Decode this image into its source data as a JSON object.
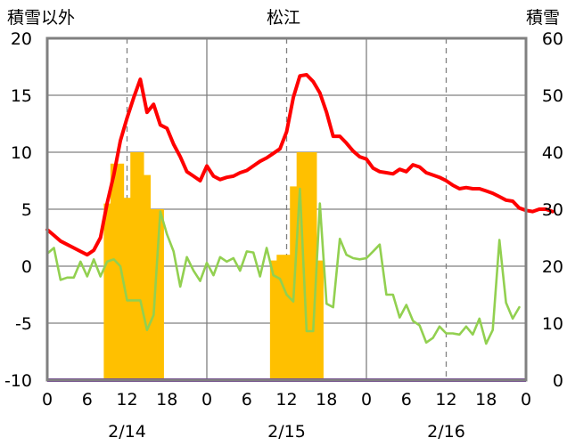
{
  "chart_data": {
    "type": "bar+line",
    "title": "松江",
    "y_left_label": "積雪以外",
    "y_right_label": "積雪",
    "y_left_range": [
      -10,
      20
    ],
    "y_left_ticks": [
      "20",
      "15",
      "10",
      "5",
      "0",
      "-5",
      "-10"
    ],
    "y_right_range": [
      0,
      60
    ],
    "y_right_ticks": [
      "60",
      "50",
      "40",
      "30",
      "20",
      "10",
      "0"
    ],
    "x_range": [
      0,
      72
    ],
    "x_tick_labels": [
      "0",
      "6",
      "12",
      "18",
      "0",
      "6",
      "12",
      "18",
      "0",
      "6",
      "12",
      "18",
      "0"
    ],
    "date_labels": [
      "2/14",
      "2/15",
      "2/16"
    ],
    "grid": {
      "major_vertical_hours": [
        24,
        48
      ],
      "dashed_vertical_hours": [
        12,
        36,
        60
      ],
      "horizontal": true
    },
    "colors": {
      "red": "#ff0000",
      "green": "#92d050",
      "bars": "#ffc000",
      "purple": "#7030a0",
      "grid": "#808080"
    },
    "series": [
      {
        "axis": "left",
        "kind": "line",
        "color": "#ff0000",
        "values": [
          3.2,
          2.7,
          2.2,
          1.9,
          1.6,
          1.3,
          1.0,
          1.4,
          2.5,
          5.5,
          8.0,
          11.0,
          13.0,
          14.8,
          16.4,
          13.5,
          14.2,
          12.4,
          12.1,
          10.7,
          9.6,
          8.3,
          7.9,
          7.5,
          8.8,
          7.9,
          7.6,
          7.8,
          7.9,
          8.2,
          8.4,
          8.8,
          9.2,
          9.5,
          9.9,
          10.3,
          11.8,
          14.8,
          16.7,
          16.8,
          16.2,
          15.2,
          13.5,
          11.4,
          11.4,
          10.8,
          10.1,
          9.6,
          9.4,
          8.6,
          8.3,
          8.2,
          8.1,
          8.5,
          8.3,
          8.9,
          8.7,
          8.2,
          8.0,
          7.8,
          7.5,
          7.1,
          6.8,
          6.9,
          6.8,
          6.8,
          6.6,
          6.4,
          6.1,
          5.8,
          5.7,
          5.1,
          4.9,
          4.8,
          5.0,
          5.0,
          4.8
        ]
      },
      {
        "axis": "left",
        "kind": "line",
        "color": "#92d050",
        "values": [
          1.1,
          1.6,
          -1.2,
          -1.0,
          -1.0,
          0.4,
          -0.9,
          0.6,
          -0.9,
          0.4,
          0.6,
          0.0,
          -3.0,
          -3.0,
          -3.0,
          -5.6,
          -4.3,
          4.8,
          2.8,
          1.3,
          -1.8,
          0.8,
          -0.4,
          -1.3,
          0.3,
          -0.8,
          0.8,
          0.4,
          0.7,
          -0.4,
          1.3,
          1.2,
          -0.9,
          1.6,
          -0.8,
          -1.1,
          -2.5,
          -3.1,
          6.8,
          -5.7,
          -5.7,
          5.5,
          -3.3,
          -3.6,
          2.4,
          1.0,
          0.7,
          0.6,
          0.7,
          1.3,
          1.9,
          -2.5,
          -2.5,
          -4.5,
          -3.4,
          -4.8,
          -5.2,
          -6.7,
          -6.3,
          -5.3,
          -5.9,
          -5.9,
          -6.0,
          -5.3,
          -6.0,
          -4.6,
          -6.8,
          -5.6,
          2.3,
          -3.2,
          -4.6,
          -3.6
        ]
      },
      {
        "axis": "left",
        "kind": "line",
        "color": "#7030a0",
        "values": [
          -10,
          -10
        ]
      },
      {
        "axis": "right",
        "kind": "bar",
        "color": "#ffc000",
        "hours": [
          9,
          10,
          11,
          12,
          13,
          14,
          15,
          16,
          17,
          34,
          35,
          36,
          37,
          38,
          39,
          40,
          41
        ],
        "values": [
          31,
          38,
          38,
          32,
          40,
          40,
          36,
          30,
          30,
          21,
          22,
          22,
          34,
          40,
          40,
          40,
          21
        ]
      }
    ]
  }
}
